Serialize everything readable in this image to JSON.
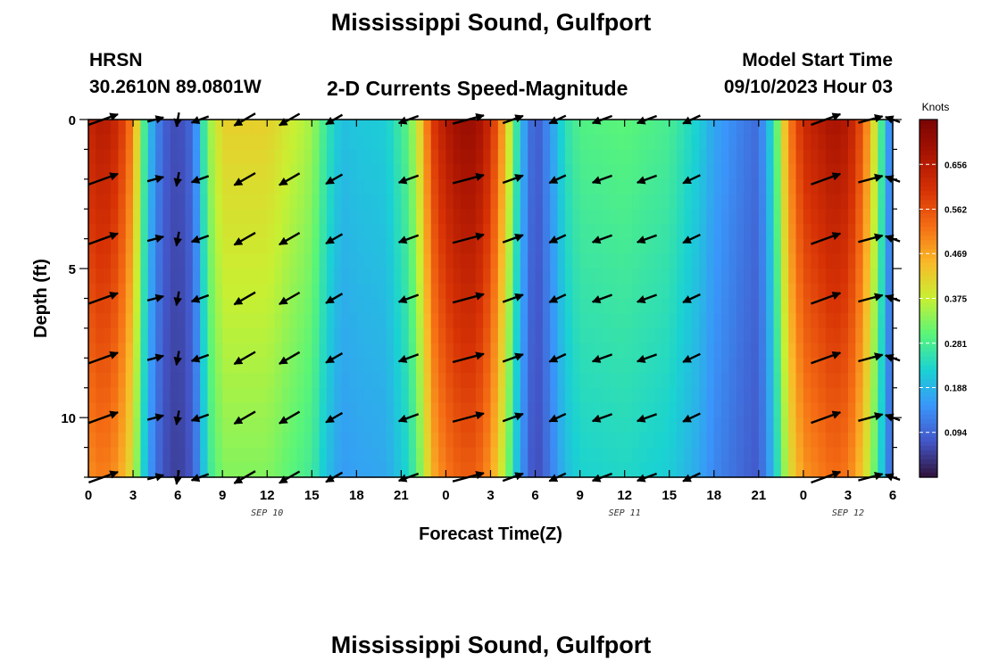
{
  "header": {
    "title": "Mississippi Sound, Gulfport",
    "footer_title": "Mississippi Sound, Gulfport",
    "model": "HRSN",
    "location": "30.2610N  89.0801W",
    "plot_title": "2-D Currents Speed-Magnitude",
    "start_label": "Model Start Time",
    "start_time": "09/10/2023 Hour 03"
  },
  "chart_data": {
    "type": "heatmap",
    "title": "2-D Currents Speed-Magnitude",
    "xlabel": "Forecast Time(Z)",
    "ylabel": "Depth (ft)",
    "xlim": [
      0,
      54
    ],
    "ylim": [
      12,
      0
    ],
    "x_ticks": [
      {
        "x": 0,
        "label": "0"
      },
      {
        "x": 3,
        "label": "3"
      },
      {
        "x": 6,
        "label": "6"
      },
      {
        "x": 9,
        "label": "9"
      },
      {
        "x": 12,
        "label": "12"
      },
      {
        "x": 15,
        "label": "15"
      },
      {
        "x": 18,
        "label": "18"
      },
      {
        "x": 21,
        "label": "21"
      },
      {
        "x": 24,
        "label": "0"
      },
      {
        "x": 27,
        "label": "3"
      },
      {
        "x": 30,
        "label": "6"
      },
      {
        "x": 33,
        "label": "9"
      },
      {
        "x": 36,
        "label": "12"
      },
      {
        "x": 39,
        "label": "15"
      },
      {
        "x": 42,
        "label": "18"
      },
      {
        "x": 45,
        "label": "21"
      },
      {
        "x": 48,
        "label": "0"
      },
      {
        "x": 51,
        "label": "3"
      },
      {
        "x": 54,
        "label": "6"
      }
    ],
    "y_ticks": [
      {
        "y": 0,
        "label": "0"
      },
      {
        "y": 5,
        "label": "5"
      },
      {
        "y": 10,
        "label": "10"
      }
    ],
    "date_labels": [
      {
        "x": 12,
        "label": "SEP 10"
      },
      {
        "x": 36,
        "label": "SEP 11"
      },
      {
        "x": 51,
        "label": "SEP 12"
      }
    ],
    "colorbar": {
      "label": "Knots",
      "min": 0.0,
      "max": 0.75,
      "ticks": [
        "0.094",
        "0.188",
        "0.281",
        "0.375",
        "0.469",
        "0.562",
        "0.656"
      ],
      "tick_values": [
        0.094,
        0.188,
        0.281,
        0.375,
        0.469,
        0.562,
        0.656
      ]
    },
    "speed_profile": {
      "x": [
        0,
        1,
        2,
        3,
        3.6,
        4.3,
        5,
        6,
        7,
        7.5,
        8,
        9,
        12,
        15,
        16,
        17,
        18,
        20,
        21.5,
        22.5,
        23,
        24,
        25,
        26,
        27,
        28,
        29,
        30,
        31,
        32,
        33,
        36,
        39,
        41,
        42,
        44,
        45,
        46,
        47,
        48,
        50,
        51,
        52,
        53,
        53.5,
        54
      ],
      "values": [
        0.63,
        0.66,
        0.62,
        0.5,
        0.31,
        0.17,
        0.09,
        0.06,
        0.1,
        0.2,
        0.33,
        0.42,
        0.42,
        0.35,
        0.26,
        0.2,
        0.21,
        0.22,
        0.3,
        0.45,
        0.58,
        0.66,
        0.7,
        0.7,
        0.62,
        0.45,
        0.2,
        0.07,
        0.15,
        0.25,
        0.29,
        0.3,
        0.28,
        0.22,
        0.17,
        0.12,
        0.1,
        0.25,
        0.5,
        0.62,
        0.68,
        0.66,
        0.55,
        0.35,
        0.2,
        0.1
      ],
      "depth_factor_at_12ft": 0.78
    },
    "vectors": {
      "x": [
        1,
        4.5,
        6,
        7.5,
        10.5,
        13.5,
        16.5,
        21.5,
        25.5,
        28.5,
        31.5,
        34.5,
        37.5,
        40.5,
        49.5,
        52.5,
        54
      ],
      "depths": [
        0,
        2,
        4,
        6,
        8,
        10,
        12
      ],
      "angle_deg": [
        20,
        15,
        -100,
        200,
        210,
        210,
        210,
        200,
        15,
        20,
        205,
        200,
        200,
        205,
        20,
        15,
        160
      ]
    }
  }
}
